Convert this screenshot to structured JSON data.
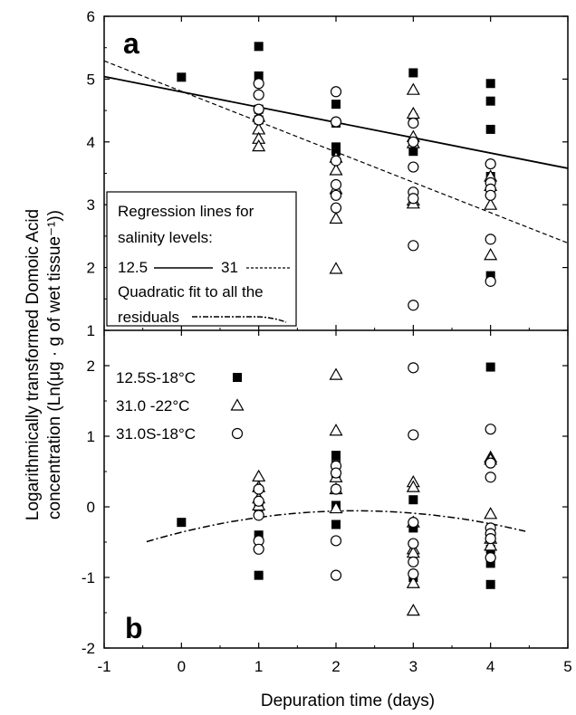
{
  "chart_data": [
    {
      "type": "scatter",
      "panel_label": "a",
      "xlabel": "Depuration time (days)",
      "ylabel_line1": "Logarithmically transformed Domoic Acid",
      "ylabel_line2": "concentration (Ln(μg · g of wet tissue⁻¹))",
      "xlim": [
        -1,
        5
      ],
      "ylim": [
        1,
        6
      ],
      "xticks": [
        -1,
        0,
        1,
        2,
        3,
        4,
        5
      ],
      "yticks": [
        1,
        2,
        3,
        4,
        5,
        6
      ],
      "series": [
        {
          "name": "12.5S-18°C",
          "marker": "filled-square",
          "points": [
            [
              0,
              5.03
            ],
            [
              1,
              5.52
            ],
            [
              1,
              5.05
            ],
            [
              1,
              4.52
            ],
            [
              1,
              4.35
            ],
            [
              2,
              4.6
            ],
            [
              2,
              4.3
            ],
            [
              2,
              3.92
            ],
            [
              2,
              3.85
            ],
            [
              3,
              5.1
            ],
            [
              3,
              4.38
            ],
            [
              3,
              3.85
            ],
            [
              4,
              4.93
            ],
            [
              4,
              4.65
            ],
            [
              4,
              4.2
            ],
            [
              4,
              3.45
            ],
            [
              4,
              1.87
            ]
          ]
        },
        {
          "name": "31.0 -22°C",
          "marker": "open-triangle",
          "points": [
            [
              1,
              4.4
            ],
            [
              1,
              4.2
            ],
            [
              1,
              4.05
            ],
            [
              1,
              3.93
            ],
            [
              2,
              3.75
            ],
            [
              2,
              3.55
            ],
            [
              2,
              3.25
            ],
            [
              2,
              2.78
            ],
            [
              2,
              1.98
            ],
            [
              3,
              4.83
            ],
            [
              3,
              4.45
            ],
            [
              3,
              4.08
            ],
            [
              3,
              3.98
            ],
            [
              3,
              3.07
            ],
            [
              3,
              3.02
            ],
            [
              4,
              3.45
            ],
            [
              4,
              3.3
            ],
            [
              4,
              3.0
            ],
            [
              4,
              2.2
            ]
          ]
        },
        {
          "name": "31.0S-18°C",
          "marker": "open-circle",
          "points": [
            [
              1,
              4.93
            ],
            [
              1,
              4.75
            ],
            [
              1,
              4.52
            ],
            [
              1,
              4.35
            ],
            [
              2,
              4.8
            ],
            [
              2,
              4.32
            ],
            [
              2,
              3.7
            ],
            [
              2,
              3.32
            ],
            [
              2,
              3.15
            ],
            [
              2,
              2.95
            ],
            [
              3,
              4.3
            ],
            [
              3,
              4.0
            ],
            [
              3,
              3.6
            ],
            [
              3,
              3.2
            ],
            [
              3,
              3.1
            ],
            [
              3,
              2.35
            ],
            [
              3,
              1.4
            ],
            [
              4,
              3.65
            ],
            [
              4,
              3.35
            ],
            [
              4,
              3.25
            ],
            [
              4,
              3.15
            ],
            [
              4,
              2.45
            ],
            [
              4,
              1.78
            ]
          ]
        }
      ],
      "regression_lines": [
        {
          "name": "12.5",
          "style": "solid",
          "x": [
            -1,
            5
          ],
          "y": [
            5.04,
            3.58
          ]
        },
        {
          "name": "31",
          "style": "dashed",
          "x": [
            -1,
            5
          ],
          "y": [
            5.29,
            2.39
          ]
        }
      ],
      "legend": {
        "placement": "left",
        "title_line1": "Regression lines for",
        "title_line2": "salinity levels:",
        "solid_label": "12.5",
        "dashed_label": "31",
        "quad_line1": "Quadratic fit to all the",
        "quad_line2": "residuals"
      }
    },
    {
      "type": "scatter",
      "panel_label": "b",
      "xlim": [
        -1,
        5
      ],
      "ylim": [
        -2,
        2.5
      ],
      "xticks": [
        -1,
        0,
        1,
        2,
        3,
        4,
        5
      ],
      "yticks": [
        -2,
        -1,
        0,
        1,
        2
      ],
      "series": [
        {
          "name": "12.5S-18°C",
          "marker": "filled-square",
          "points": [
            [
              0,
              -0.22
            ],
            [
              1,
              -0.97
            ],
            [
              1,
              -0.4
            ],
            [
              1,
              0.0
            ],
            [
              2,
              0.73
            ],
            [
              2,
              0.6
            ],
            [
              2,
              0.42
            ],
            [
              2,
              0.02
            ],
            [
              2,
              -0.25
            ],
            [
              3,
              0.1
            ],
            [
              3,
              -0.3
            ],
            [
              3,
              -1.0
            ],
            [
              4,
              1.98
            ],
            [
              4,
              -0.6
            ],
            [
              4,
              -0.8
            ],
            [
              4,
              -1.1
            ]
          ]
        },
        {
          "name": "31.0 -22°C",
          "marker": "open-triangle",
          "points": [
            [
              1,
              0.43
            ],
            [
              1,
              0.28
            ],
            [
              1,
              0.12
            ],
            [
              1,
              0.02
            ],
            [
              2,
              1.87
            ],
            [
              2,
              1.08
            ],
            [
              2,
              0.42
            ],
            [
              2,
              0.25
            ],
            [
              2,
              -0.02
            ],
            [
              3,
              0.35
            ],
            [
              3,
              0.28
            ],
            [
              3,
              -0.22
            ],
            [
              3,
              -0.6
            ],
            [
              3,
              -0.65
            ],
            [
              3,
              -1.08
            ],
            [
              3,
              -1.47
            ],
            [
              4,
              0.7
            ],
            [
              4,
              0.67
            ],
            [
              4,
              -0.1
            ],
            [
              4,
              -0.45
            ],
            [
              4,
              -0.55
            ]
          ]
        },
        {
          "name": "31.0S-18°C",
          "marker": "open-circle",
          "points": [
            [
              1,
              0.25
            ],
            [
              1,
              0.08
            ],
            [
              1,
              -0.12
            ],
            [
              1,
              -0.48
            ],
            [
              1,
              -0.6
            ],
            [
              2,
              0.58
            ],
            [
              2,
              0.48
            ],
            [
              2,
              0.25
            ],
            [
              2,
              -0.48
            ],
            [
              2,
              -0.97
            ],
            [
              3,
              1.97
            ],
            [
              3,
              1.02
            ],
            [
              3,
              -0.22
            ],
            [
              3,
              -0.52
            ],
            [
              3,
              -0.78
            ],
            [
              3,
              -0.95
            ],
            [
              4,
              1.1
            ],
            [
              4,
              0.62
            ],
            [
              4,
              0.42
            ],
            [
              4,
              -0.3
            ],
            [
              4,
              -0.38
            ],
            [
              4,
              -0.45
            ],
            [
              4,
              -0.72
            ]
          ]
        }
      ],
      "quadratic_fit": {
        "style": "dash-dot",
        "x_range": [
          -0.45,
          4.45
        ],
        "a": -0.06,
        "b": 0.27,
        "c": -0.36
      },
      "legend": {
        "placement": "left",
        "items": [
          "12.5S-18°C",
          "31.0 -22°C",
          "31.0S-18°C"
        ]
      }
    }
  ]
}
